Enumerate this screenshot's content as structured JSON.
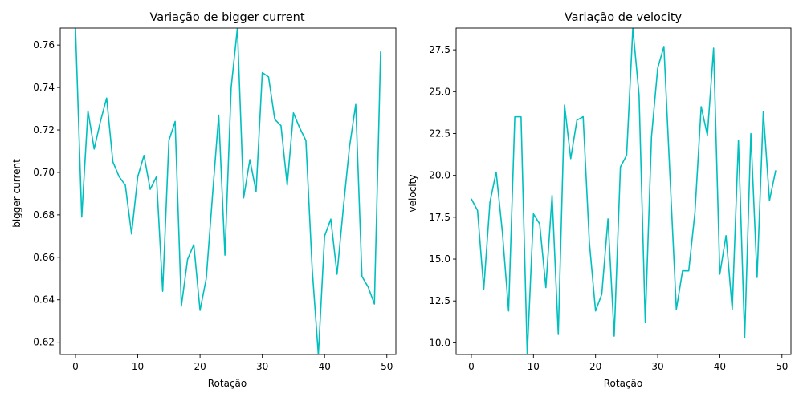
{
  "chart_data": [
    {
      "type": "line",
      "title": "Variação de bigger current",
      "xlabel": "Rotação",
      "ylabel": "bigger current",
      "xlim": [
        -2.45,
        51.45
      ],
      "ylim": [
        0.6142,
        0.768
      ],
      "xticks": [
        0,
        10,
        20,
        30,
        40,
        50
      ],
      "yticks": [
        0.62,
        0.64,
        0.66,
        0.68,
        0.7,
        0.72,
        0.74,
        0.76
      ],
      "ytick_labels": [
        "0.62",
        "0.64",
        "0.66",
        "0.68",
        "0.70",
        "0.72",
        "0.74",
        "0.76"
      ],
      "grid": false,
      "color": "#00bfbf",
      "x": [
        0,
        1,
        2,
        3,
        4,
        5,
        6,
        7,
        8,
        9,
        10,
        11,
        12,
        13,
        14,
        15,
        16,
        17,
        18,
        19,
        20,
        21,
        22,
        23,
        24,
        25,
        26,
        27,
        28,
        29,
        30,
        31,
        32,
        33,
        34,
        35,
        36,
        37,
        38,
        39,
        40,
        41,
        42,
        43,
        44,
        45,
        46,
        47,
        48,
        49
      ],
      "y": [
        0.768,
        0.679,
        0.729,
        0.711,
        0.724,
        0.735,
        0.705,
        0.698,
        0.694,
        0.671,
        0.698,
        0.708,
        0.692,
        0.698,
        0.644,
        0.715,
        0.724,
        0.637,
        0.659,
        0.666,
        0.635,
        0.65,
        0.689,
        0.727,
        0.661,
        0.74,
        0.768,
        0.688,
        0.706,
        0.691,
        0.747,
        0.745,
        0.725,
        0.722,
        0.694,
        0.728,
        0.721,
        0.715,
        0.655,
        0.614,
        0.67,
        0.678,
        0.652,
        0.683,
        0.712,
        0.732,
        0.651,
        0.646,
        0.638,
        0.757
      ]
    },
    {
      "type": "line",
      "title": "Variação de velocity",
      "xlabel": "Rotação",
      "ylabel": "velocity",
      "xlim": [
        -2.45,
        51.45
      ],
      "ylim": [
        9.3,
        28.8
      ],
      "xticks": [
        0,
        10,
        20,
        30,
        40,
        50
      ],
      "yticks": [
        10.0,
        12.5,
        15.0,
        17.5,
        20.0,
        22.5,
        25.0,
        27.5
      ],
      "ytick_labels": [
        "10.0",
        "12.5",
        "15.0",
        "17.5",
        "20.0",
        "22.5",
        "25.0",
        "27.5"
      ],
      "grid": false,
      "color": "#00bfbf",
      "x": [
        0,
        1,
        2,
        3,
        4,
        5,
        6,
        7,
        8,
        9,
        10,
        11,
        12,
        13,
        14,
        15,
        16,
        17,
        18,
        19,
        20,
        21,
        22,
        23,
        24,
        25,
        26,
        27,
        28,
        29,
        30,
        31,
        32,
        33,
        34,
        35,
        36,
        37,
        38,
        39,
        40,
        41,
        42,
        43,
        44,
        45,
        46,
        47,
        48,
        49
      ],
      "y": [
        18.6,
        17.9,
        13.2,
        18.4,
        20.2,
        16.6,
        11.9,
        23.5,
        23.5,
        9.3,
        17.7,
        17.1,
        13.3,
        18.8,
        10.5,
        24.2,
        21.0,
        23.3,
        23.5,
        16.0,
        11.9,
        12.9,
        17.4,
        10.4,
        20.5,
        21.2,
        28.8,
        24.8,
        11.2,
        22.3,
        26.4,
        27.7,
        19.8,
        12.0,
        14.3,
        14.3,
        17.8,
        24.1,
        22.4,
        27.6,
        14.1,
        16.4,
        12.0,
        22.1,
        10.3,
        22.5,
        13.9,
        23.8,
        18.5,
        20.3
      ]
    }
  ]
}
